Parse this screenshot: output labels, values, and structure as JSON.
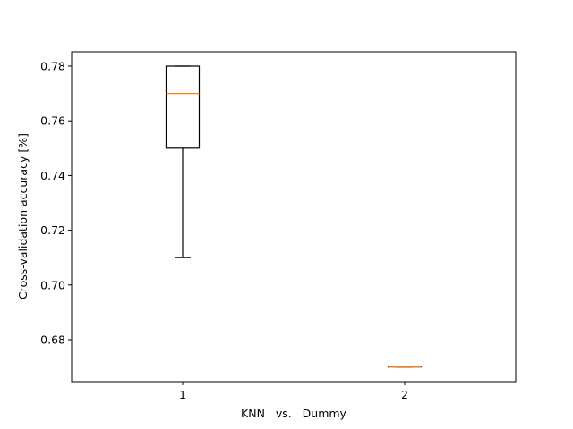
{
  "chart_data": {
    "type": "boxplot",
    "categories": [
      "1",
      "2"
    ],
    "xlabel": "KNN   vs.   Dummy",
    "ylabel": "Cross-validation accuracy [%]",
    "ylim": [
      0.665,
      0.785
    ],
    "yticks": [
      0.68,
      0.7,
      0.72,
      0.74,
      0.76,
      0.78
    ],
    "ytick_labels": [
      "0.68",
      "0.70",
      "0.72",
      "0.74",
      "0.76",
      "0.78"
    ],
    "grid": false,
    "boxes": [
      {
        "category": "1",
        "whisker_low": 0.71,
        "q1": 0.75,
        "median": 0.77,
        "q3": 0.78,
        "whisker_high": 0.78
      },
      {
        "category": "2",
        "whisker_low": 0.67,
        "q1": 0.67,
        "median": 0.67,
        "q3": 0.67,
        "whisker_high": 0.67
      }
    ],
    "colors": {
      "box": "#000000",
      "median": "#ff7f0e"
    }
  }
}
